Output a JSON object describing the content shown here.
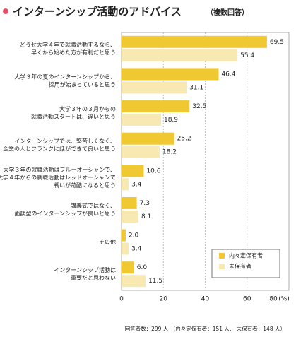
{
  "chart_data": {
    "type": "bar",
    "orientation": "horizontal",
    "title": "インターンシップ活動のアドバイス",
    "subtitle": "（複数回答）",
    "categories": [
      [
        "どうせ大学４年で就職活動するなら、",
        "早くから始めた方が有利だと思う"
      ],
      [
        "大学３年の夏のインターンシップから、",
        "採用が始まっていると思う"
      ],
      [
        "大学３年の３月からの",
        "就職活動スタートは、遅いと思う"
      ],
      [
        "インターンシップでは、堅苦しくなく、",
        "企業の人とフランクに話ができて良いと思う"
      ],
      [
        "大学３年の就職活動はブルーオーシャンで、",
        "大学４年からの就職活動はレッドオーシャンで",
        "戦いが苛酷になると思う"
      ],
      [
        "講義式ではなく、",
        "面談型のインターンシップが良いと思う"
      ],
      [
        "その他"
      ],
      [
        "インターンシップ活動は",
        "重要だと思わない"
      ]
    ],
    "series": [
      {
        "name": "内々定保有者",
        "color": "#f0c832",
        "values": [
          69.5,
          46.4,
          32.5,
          25.2,
          10.6,
          7.3,
          2.0,
          6.0
        ],
        "value_labels": [
          "69.5",
          "46.4",
          "32.5",
          "25.2",
          "10.6",
          "7.3",
          "2.0",
          "6.0"
        ]
      },
      {
        "name": "未保有者",
        "color": "#f8e9b2",
        "values": [
          55.4,
          31.1,
          18.9,
          18.2,
          3.4,
          8.1,
          3.4,
          11.5
        ],
        "value_labels": [
          "55.4",
          "31.1",
          "18.9",
          "18.2",
          "3.4",
          "8.1",
          "3.4",
          "11.5"
        ]
      }
    ],
    "xlim": [
      0,
      80
    ],
    "xticks": [
      0,
      20,
      40,
      60,
      80
    ],
    "x_unit": "(%)",
    "grid": true,
    "legend": "lower-right",
    "note": "回答者数：299 人 （内々定保有者：151 人、 未保有者：148 人）"
  }
}
